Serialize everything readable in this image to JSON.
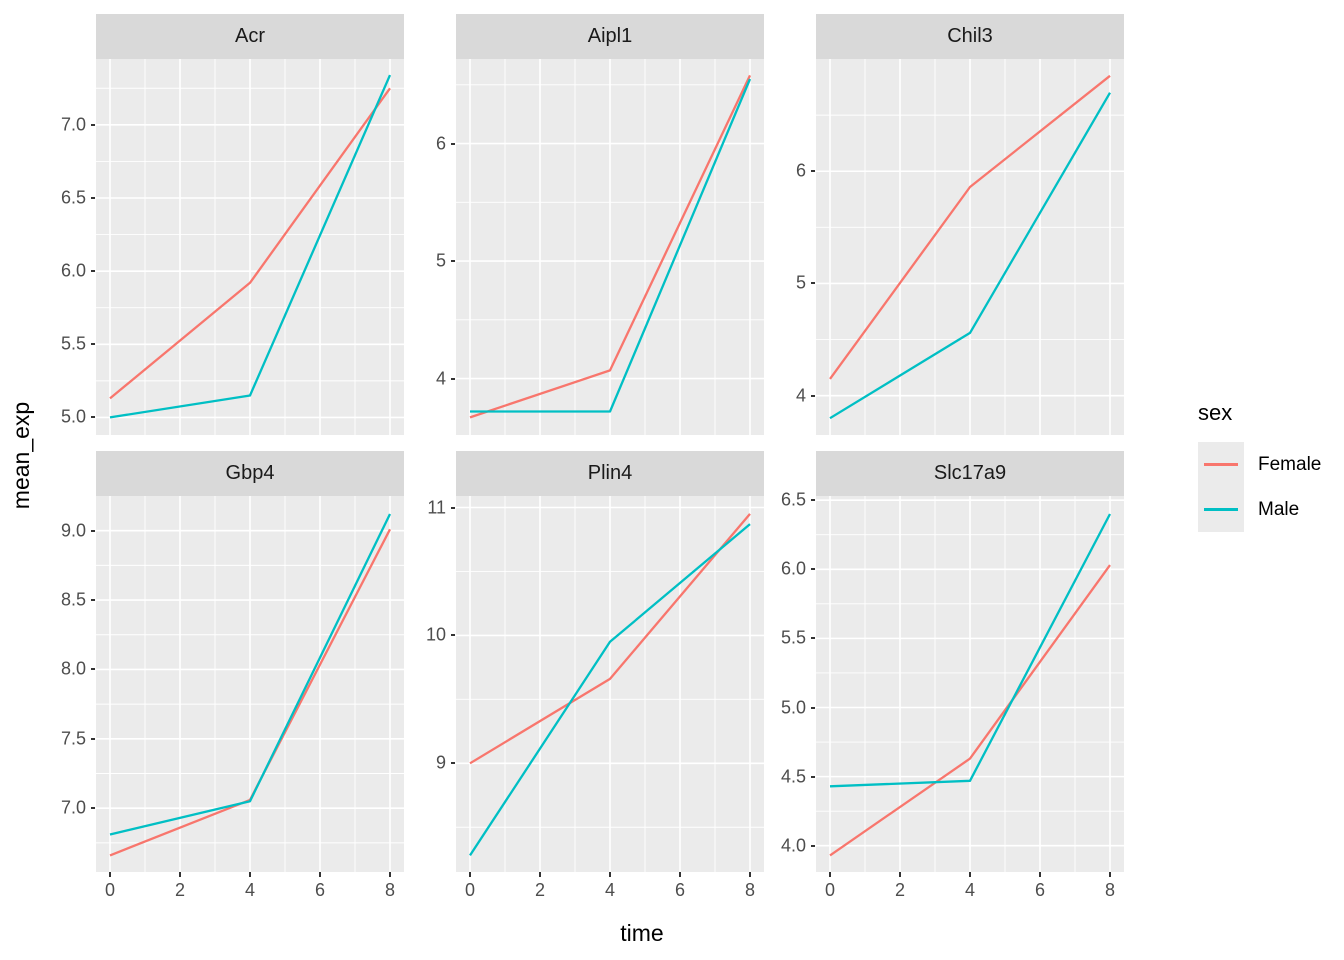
{
  "chart_data": {
    "type": "line",
    "xlabel": "time",
    "ylabel": "mean_exp",
    "x": [
      0,
      4,
      8
    ],
    "xticks": [
      0,
      2,
      4,
      6,
      8
    ],
    "xtick_labels": [
      "0",
      "2",
      "4",
      "6",
      "8"
    ],
    "xlim": [
      -0.4,
      8.4
    ],
    "series_names": [
      "Female",
      "Male"
    ],
    "colors": {
      "Female": "#F8766D",
      "Male": "#00BFC4"
    },
    "legend": {
      "title": "sex",
      "entries": [
        "Female",
        "Male"
      ],
      "position": "right"
    },
    "grid": true,
    "facets": [
      {
        "title": "Acr",
        "ylim": [
          4.88,
          7.45
        ],
        "yticks": [
          5.0,
          5.5,
          6.0,
          6.5,
          7.0
        ],
        "ytick_labels": [
          "5.0",
          "5.5",
          "6.0",
          "6.5",
          "7.0"
        ],
        "series": {
          "Female": [
            5.13,
            5.92,
            7.25
          ],
          "Male": [
            5.0,
            5.15,
            7.34
          ]
        }
      },
      {
        "title": "Aipl1",
        "ylim": [
          3.52,
          6.72
        ],
        "yticks": [
          4,
          5,
          6
        ],
        "ytick_labels": [
          "4",
          "5",
          "6"
        ],
        "series": {
          "Female": [
            3.67,
            4.07,
            6.58
          ],
          "Male": [
            3.72,
            3.72,
            6.55
          ]
        }
      },
      {
        "title": "Chil3",
        "ylim": [
          3.65,
          7.0
        ],
        "yticks": [
          4,
          5,
          6
        ],
        "ytick_labels": [
          "4",
          "5",
          "6"
        ],
        "series": {
          "Female": [
            4.15,
            5.86,
            6.85
          ],
          "Male": [
            3.8,
            4.56,
            6.7
          ]
        }
      },
      {
        "title": "Gbp4",
        "ylim": [
          6.54,
          9.25
        ],
        "yticks": [
          7.0,
          7.5,
          8.0,
          8.5,
          9.0
        ],
        "ytick_labels": [
          "7.0",
          "7.5",
          "8.0",
          "8.5",
          "9.0"
        ],
        "series": {
          "Female": [
            6.66,
            7.06,
            9.01
          ],
          "Male": [
            6.81,
            7.05,
            9.12
          ]
        }
      },
      {
        "title": "Plin4",
        "ylim": [
          8.15,
          11.09
        ],
        "yticks": [
          9,
          10,
          11
        ],
        "ytick_labels": [
          "9",
          "10",
          "11"
        ],
        "series": {
          "Female": [
            9.0,
            9.66,
            10.95
          ],
          "Male": [
            8.28,
            9.95,
            10.87
          ]
        }
      },
      {
        "title": "Slc17a9",
        "ylim": [
          3.81,
          6.53
        ],
        "yticks": [
          4.0,
          4.5,
          5.0,
          5.5,
          6.0,
          6.5
        ],
        "ytick_labels": [
          "4.0",
          "4.5",
          "5.0",
          "5.5",
          "6.0",
          "6.5"
        ],
        "series": {
          "Female": [
            3.93,
            4.63,
            6.03
          ],
          "Male": [
            4.43,
            4.47,
            6.4
          ]
        }
      }
    ],
    "style": {
      "panel_bg": "#EBEBEB",
      "strip_bg": "#D9D9D9",
      "strip_text": "#1A1A1A",
      "grid_color": "#FFFFFF",
      "axis_text": "#4D4D4D",
      "tick_mark": "#333333",
      "legend_key_bg": "#EBEBEB"
    }
  }
}
